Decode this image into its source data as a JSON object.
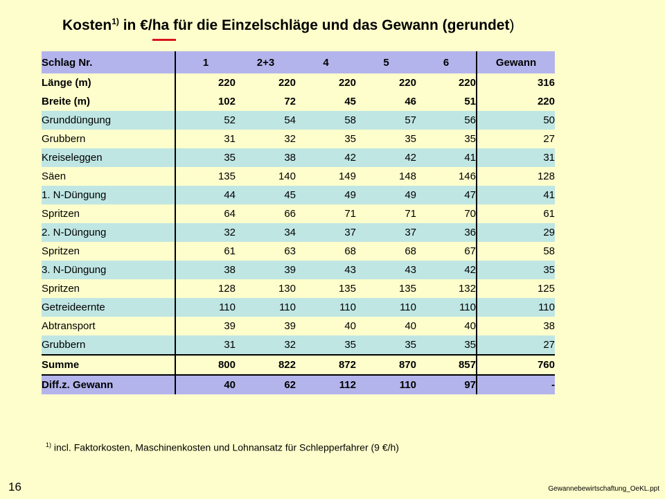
{
  "title": {
    "main": "Kosten",
    "sup": "1)",
    "rest": " in €/ha für die Einzelschläge und das Gewann (gerundet",
    "close": ")"
  },
  "table": {
    "header": [
      "Schlag Nr.",
      "1",
      "2+3",
      "4",
      "5",
      "6",
      "Gewann"
    ],
    "dims": [
      [
        "Länge (m)",
        "220",
        "220",
        "220",
        "220",
        "220",
        "316"
      ],
      [
        "Breite (m)",
        "102",
        "72",
        "45",
        "46",
        "51",
        "220"
      ]
    ],
    "rows": [
      [
        "Grunddüngung",
        "52",
        "54",
        "58",
        "57",
        "56",
        "50"
      ],
      [
        "Grubbern",
        "31",
        "32",
        "35",
        "35",
        "35",
        "27"
      ],
      [
        "Kreiseleggen",
        "35",
        "38",
        "42",
        "42",
        "41",
        "31"
      ],
      [
        "Säen",
        "135",
        "140",
        "149",
        "148",
        "146",
        "128"
      ],
      [
        "1. N-Düngung",
        "44",
        "45",
        "49",
        "49",
        "47",
        "41"
      ],
      [
        "Spritzen",
        "64",
        "66",
        "71",
        "71",
        "70",
        "61"
      ],
      [
        "2. N-Düngung",
        "32",
        "34",
        "37",
        "37",
        "36",
        "29"
      ],
      [
        "Spritzen",
        "61",
        "63",
        "68",
        "68",
        "67",
        "58"
      ],
      [
        "3. N-Düngung",
        "38",
        "39",
        "43",
        "43",
        "42",
        "35"
      ],
      [
        "Spritzen",
        "128",
        "130",
        "135",
        "135",
        "132",
        "125"
      ],
      [
        "Getreideernte",
        "110",
        "110",
        "110",
        "110",
        "110",
        "110"
      ],
      [
        "Abtransport",
        "39",
        "39",
        "40",
        "40",
        "40",
        "38"
      ],
      [
        "Grubbern",
        "31",
        "32",
        "35",
        "35",
        "35",
        "27"
      ]
    ],
    "summe": [
      "Summe",
      "800",
      "822",
      "872",
      "870",
      "857",
      "760"
    ],
    "diff": [
      "Diff.z. Gewann",
      "40",
      "62",
      "112",
      "110",
      "97",
      "-"
    ]
  },
  "footnote": {
    "sup": "1)",
    "text": " incl. Faktorkosten, Maschinenkosten und Lohnansatz für Schlepperfahrer (9 €/h)"
  },
  "page_number": "16",
  "filename": "Gewannebewirtschaftung_OeKL.ppt",
  "colors": {
    "background": "#fefecc",
    "header": "#b4b4ec",
    "stripe": "#bfe6e3",
    "accent_underline": "#d9141b"
  }
}
